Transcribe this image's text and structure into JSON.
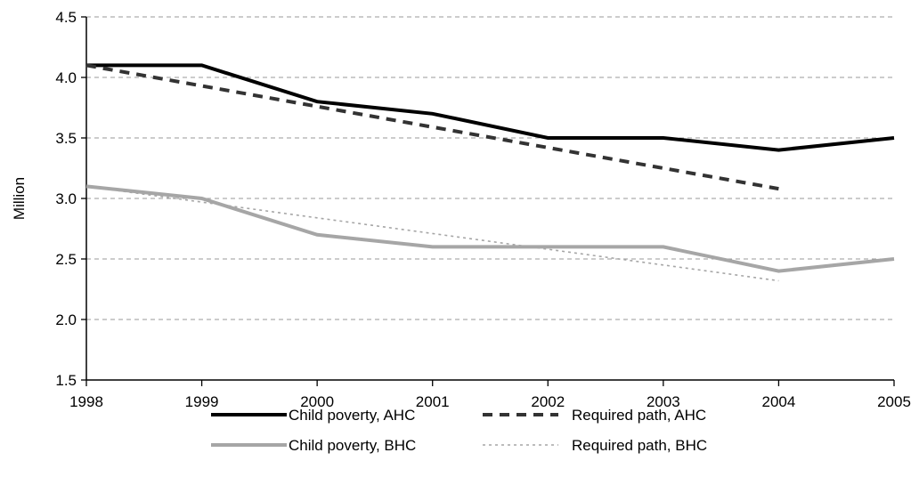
{
  "chart_data": {
    "type": "line",
    "title": "",
    "xlabel": "",
    "ylabel": "Million",
    "x": [
      "1998",
      "1999",
      "2000",
      "2001",
      "2002",
      "2003",
      "2004",
      "2005"
    ],
    "ylim": [
      1.5,
      4.5
    ],
    "yticks": [
      "1.5",
      "2.0",
      "2.5",
      "3.0",
      "3.5",
      "4.0",
      "4.5"
    ],
    "grid": "horizontal dashed",
    "legend_position": "bottom",
    "series": [
      {
        "name": "Child poverty, AHC",
        "values": [
          4.1,
          4.1,
          3.8,
          3.7,
          3.5,
          3.5,
          3.4,
          3.5
        ],
        "color": "#000000",
        "style": "solid"
      },
      {
        "name": "Required path, AHC",
        "values": [
          4.1,
          3.93,
          3.76,
          3.59,
          3.42,
          3.25,
          3.08,
          null
        ],
        "color": "#333333",
        "style": "dashed"
      },
      {
        "name": "Child poverty, BHC",
        "values": [
          3.1,
          3.0,
          2.7,
          2.6,
          2.6,
          2.6,
          2.4,
          2.5
        ],
        "color": "#a6a6a6",
        "style": "solid"
      },
      {
        "name": "Required path, BHC",
        "values": [
          3.1,
          2.97,
          2.84,
          2.71,
          2.58,
          2.45,
          2.32,
          null
        ],
        "color": "#a6a6a6",
        "style": "dotted"
      }
    ]
  }
}
